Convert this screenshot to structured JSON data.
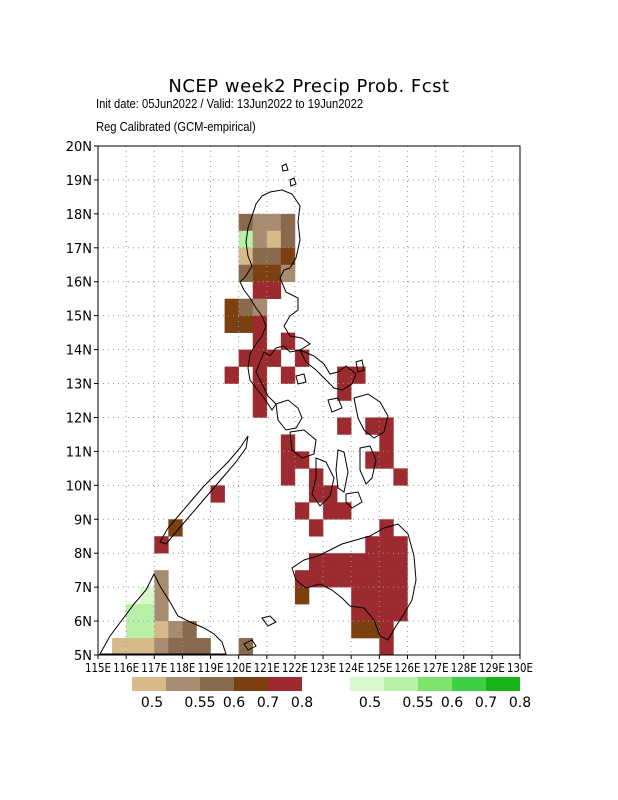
{
  "title": "NCEP week2 Precip Prob. Fcst",
  "subtitle_dates": "Init date: 05Jun2022 / Valid: 13Jun2022 to 19Jun2022",
  "subtitle_method": "Reg Calibrated (GCM-empirical)",
  "map": {
    "lon_range": [
      115,
      130
    ],
    "lat_range": [
      5,
      20
    ],
    "grid": "dotted, every 1 degree",
    "lat_labels": [
      "5N",
      "6N",
      "7N",
      "8N",
      "9N",
      "10N",
      "11N",
      "12N",
      "13N",
      "14N",
      "15N",
      "16N",
      "17N",
      "18N",
      "19N",
      "20N"
    ],
    "lon_labels": [
      "115E",
      "116E",
      "117E",
      "118E",
      "119E",
      "120E",
      "121E",
      "122E",
      "123E",
      "124E",
      "125E",
      "126E",
      "127E",
      "128E",
      "129E",
      "130E"
    ],
    "region": "Philippines"
  },
  "legend_dry": {
    "labels": [
      "0.5",
      "0.55",
      "0.6",
      "0.7",
      "0.8"
    ],
    "colors": [
      "#d7b98a",
      "#a88c72",
      "#8a6a4c",
      "#7b3f10",
      "#9c2a2e"
    ]
  },
  "legend_wet": {
    "labels": [
      "0.5",
      "0.55",
      "0.6",
      "0.7",
      "0.8"
    ],
    "colors": [
      "#d9f7cc",
      "#b8f0a8",
      "#7de36c",
      "#3fcf45",
      "#18b418"
    ]
  },
  "chart_data": {
    "type": "heatmap",
    "x_unit": "degrees E (cell center)",
    "y_unit": "degrees N (cell center)",
    "cells": [
      {
        "lon": 120.25,
        "lat": 17.75,
        "cat": "dry3"
      },
      {
        "lon": 120.75,
        "lat": 17.75,
        "cat": "dry2"
      },
      {
        "lon": 121.25,
        "lat": 17.75,
        "cat": "dry2"
      },
      {
        "lon": 121.75,
        "lat": 17.75,
        "cat": "dry3"
      },
      {
        "lon": 120.25,
        "lat": 17.25,
        "cat": "wet2"
      },
      {
        "lon": 120.75,
        "lat": 17.25,
        "cat": "dry2"
      },
      {
        "lon": 121.25,
        "lat": 17.25,
        "cat": "dry1"
      },
      {
        "lon": 121.75,
        "lat": 17.25,
        "cat": "dry3"
      },
      {
        "lon": 120.25,
        "lat": 16.75,
        "cat": "dry1"
      },
      {
        "lon": 120.75,
        "lat": 16.75,
        "cat": "dry3"
      },
      {
        "lon": 121.25,
        "lat": 16.75,
        "cat": "dry3"
      },
      {
        "lon": 121.75,
        "lat": 16.75,
        "cat": "dry4"
      },
      {
        "lon": 120.25,
        "lat": 16.25,
        "cat": "dry3"
      },
      {
        "lon": 120.75,
        "lat": 16.25,
        "cat": "dry4"
      },
      {
        "lon": 121.25,
        "lat": 16.25,
        "cat": "dry4"
      },
      {
        "lon": 121.75,
        "lat": 16.25,
        "cat": "dry2"
      },
      {
        "lon": 120.75,
        "lat": 15.75,
        "cat": "dry5"
      },
      {
        "lon": 121.25,
        "lat": 15.75,
        "cat": "dry5"
      },
      {
        "lon": 119.75,
        "lat": 15.25,
        "cat": "dry4"
      },
      {
        "lon": 120.25,
        "lat": 15.25,
        "cat": "dry3"
      },
      {
        "lon": 120.75,
        "lat": 15.25,
        "cat": "dry2"
      },
      {
        "lon": 119.75,
        "lat": 14.75,
        "cat": "dry4"
      },
      {
        "lon": 120.25,
        "lat": 14.75,
        "cat": "dry4"
      },
      {
        "lon": 120.75,
        "lat": 14.75,
        "cat": "dry5"
      },
      {
        "lon": 120.75,
        "lat": 14.25,
        "cat": "dry5"
      },
      {
        "lon": 121.75,
        "lat": 14.25,
        "cat": "dry5"
      },
      {
        "lon": 120.25,
        "lat": 13.75,
        "cat": "dry5"
      },
      {
        "lon": 120.75,
        "lat": 13.75,
        "cat": "dry5"
      },
      {
        "lon": 121.25,
        "lat": 13.75,
        "cat": "dry5"
      },
      {
        "lon": 122.25,
        "lat": 13.75,
        "cat": "dry5"
      },
      {
        "lon": 119.75,
        "lat": 13.25,
        "cat": "dry5"
      },
      {
        "lon": 120.75,
        "lat": 13.25,
        "cat": "dry5"
      },
      {
        "lon": 121.75,
        "lat": 13.25,
        "cat": "dry5"
      },
      {
        "lon": 123.75,
        "lat": 13.25,
        "cat": "dry5"
      },
      {
        "lon": 124.25,
        "lat": 13.25,
        "cat": "dry5"
      },
      {
        "lon": 120.75,
        "lat": 12.75,
        "cat": "dry5"
      },
      {
        "lon": 123.75,
        "lat": 12.75,
        "cat": "dry5"
      },
      {
        "lon": 120.75,
        "lat": 12.25,
        "cat": "dry5"
      },
      {
        "lon": 123.75,
        "lat": 11.75,
        "cat": "dry5"
      },
      {
        "lon": 124.75,
        "lat": 11.75,
        "cat": "dry5"
      },
      {
        "lon": 125.25,
        "lat": 11.75,
        "cat": "dry5"
      },
      {
        "lon": 121.75,
        "lat": 11.25,
        "cat": "dry5"
      },
      {
        "lon": 125.25,
        "lat": 11.25,
        "cat": "dry5"
      },
      {
        "lon": 121.75,
        "lat": 10.75,
        "cat": "dry5"
      },
      {
        "lon": 122.25,
        "lat": 10.75,
        "cat": "dry5"
      },
      {
        "lon": 124.75,
        "lat": 10.75,
        "cat": "dry5"
      },
      {
        "lon": 125.25,
        "lat": 10.75,
        "cat": "dry5"
      },
      {
        "lon": 121.75,
        "lat": 10.25,
        "cat": "dry5"
      },
      {
        "lon": 122.75,
        "lat": 10.25,
        "cat": "dry5"
      },
      {
        "lon": 125.75,
        "lat": 10.25,
        "cat": "dry5"
      },
      {
        "lon": 119.25,
        "lat": 9.75,
        "cat": "dry5"
      },
      {
        "lon": 122.75,
        "lat": 9.75,
        "cat": "dry5"
      },
      {
        "lon": 123.25,
        "lat": 9.75,
        "cat": "dry5"
      },
      {
        "lon": 122.25,
        "lat": 9.25,
        "cat": "dry5"
      },
      {
        "lon": 123.25,
        "lat": 9.25,
        "cat": "dry5"
      },
      {
        "lon": 123.75,
        "lat": 9.25,
        "cat": "dry5"
      },
      {
        "lon": 117.75,
        "lat": 8.75,
        "cat": "dry4"
      },
      {
        "lon": 122.75,
        "lat": 8.75,
        "cat": "dry5"
      },
      {
        "lon": 125.25,
        "lat": 8.75,
        "cat": "dry5"
      },
      {
        "lon": 117.25,
        "lat": 8.25,
        "cat": "dry5"
      },
      {
        "lon": 124.75,
        "lat": 8.25,
        "cat": "dry5"
      },
      {
        "lon": 125.25,
        "lat": 8.25,
        "cat": "dry5"
      },
      {
        "lon": 125.75,
        "lat": 8.25,
        "cat": "dry5"
      },
      {
        "lon": 122.75,
        "lat": 7.75,
        "cat": "dry5"
      },
      {
        "lon": 123.25,
        "lat": 7.75,
        "cat": "dry5"
      },
      {
        "lon": 123.75,
        "lat": 7.75,
        "cat": "dry5"
      },
      {
        "lon": 124.25,
        "lat": 7.75,
        "cat": "dry5"
      },
      {
        "lon": 124.75,
        "lat": 7.75,
        "cat": "dry5"
      },
      {
        "lon": 125.25,
        "lat": 7.75,
        "cat": "dry5"
      },
      {
        "lon": 125.75,
        "lat": 7.75,
        "cat": "dry5"
      },
      {
        "lon": 122.25,
        "lat": 7.25,
        "cat": "dry5"
      },
      {
        "lon": 122.75,
        "lat": 7.25,
        "cat": "dry5"
      },
      {
        "lon": 123.25,
        "lat": 7.25,
        "cat": "dry5"
      },
      {
        "lon": 123.75,
        "lat": 7.25,
        "cat": "dry5"
      },
      {
        "lon": 124.25,
        "lat": 7.25,
        "cat": "dry5"
      },
      {
        "lon": 124.75,
        "lat": 7.25,
        "cat": "dry5"
      },
      {
        "lon": 125.25,
        "lat": 7.25,
        "cat": "dry5"
      },
      {
        "lon": 125.75,
        "lat": 7.25,
        "cat": "dry5"
      },
      {
        "lon": 117.25,
        "lat": 7.25,
        "cat": "dry2"
      },
      {
        "lon": 122.25,
        "lat": 6.75,
        "cat": "dry4"
      },
      {
        "lon": 124.25,
        "lat": 6.75,
        "cat": "dry5"
      },
      {
        "lon": 124.75,
        "lat": 6.75,
        "cat": "dry5"
      },
      {
        "lon": 125.25,
        "lat": 6.75,
        "cat": "dry5"
      },
      {
        "lon": 125.75,
        "lat": 6.75,
        "cat": "dry5"
      },
      {
        "lon": 117.25,
        "lat": 6.75,
        "cat": "dry2"
      },
      {
        "lon": 116.75,
        "lat": 6.75,
        "cat": "wet1"
      },
      {
        "lon": 117.25,
        "lat": 6.25,
        "cat": "dry2"
      },
      {
        "lon": 116.75,
        "lat": 6.25,
        "cat": "wet2"
      },
      {
        "lon": 116.25,
        "lat": 6.25,
        "cat": "wet2"
      },
      {
        "lon": 124.25,
        "lat": 6.25,
        "cat": "dry5"
      },
      {
        "lon": 124.75,
        "lat": 6.25,
        "cat": "dry5"
      },
      {
        "lon": 125.25,
        "lat": 6.25,
        "cat": "dry5"
      },
      {
        "lon": 125.75,
        "lat": 6.25,
        "cat": "dry5"
      },
      {
        "lon": 116.25,
        "lat": 5.75,
        "cat": "wet2"
      },
      {
        "lon": 116.75,
        "lat": 5.75,
        "cat": "wet2"
      },
      {
        "lon": 117.25,
        "lat": 5.75,
        "cat": "dry1"
      },
      {
        "lon": 117.75,
        "lat": 5.75,
        "cat": "dry2"
      },
      {
        "lon": 118.25,
        "lat": 5.75,
        "cat": "dry3"
      },
      {
        "lon": 124.25,
        "lat": 5.75,
        "cat": "dry4"
      },
      {
        "lon": 124.75,
        "lat": 5.75,
        "cat": "dry4"
      },
      {
        "lon": 125.25,
        "lat": 5.75,
        "cat": "dry5"
      },
      {
        "lon": 116.25,
        "lat": 5.25,
        "cat": "dry1"
      },
      {
        "lon": 116.75,
        "lat": 5.25,
        "cat": "dry1"
      },
      {
        "lon": 117.25,
        "lat": 5.25,
        "cat": "dry2"
      },
      {
        "lon": 117.75,
        "lat": 5.25,
        "cat": "dry3"
      },
      {
        "lon": 118.25,
        "lat": 5.25,
        "cat": "dry3"
      },
      {
        "lon": 118.75,
        "lat": 5.25,
        "cat": "dry3"
      },
      {
        "lon": 115.75,
        "lat": 5.25,
        "cat": "dry1"
      },
      {
        "lon": 120.25,
        "lat": 5.25,
        "cat": "dry3"
      },
      {
        "lon": 125.25,
        "lat": 5.25,
        "cat": "dry5"
      }
    ],
    "category_colors": {
      "dry1": "#d7b98a",
      "dry2": "#a88c72",
      "dry3": "#8a6a4c",
      "dry4": "#7b3f10",
      "dry5": "#9c2a2e",
      "wet1": "#d9f7cc",
      "wet2": "#b8f0a8",
      "wet3": "#7de36c",
      "wet4": "#3fcf45",
      "wet5": "#18b418"
    }
  }
}
